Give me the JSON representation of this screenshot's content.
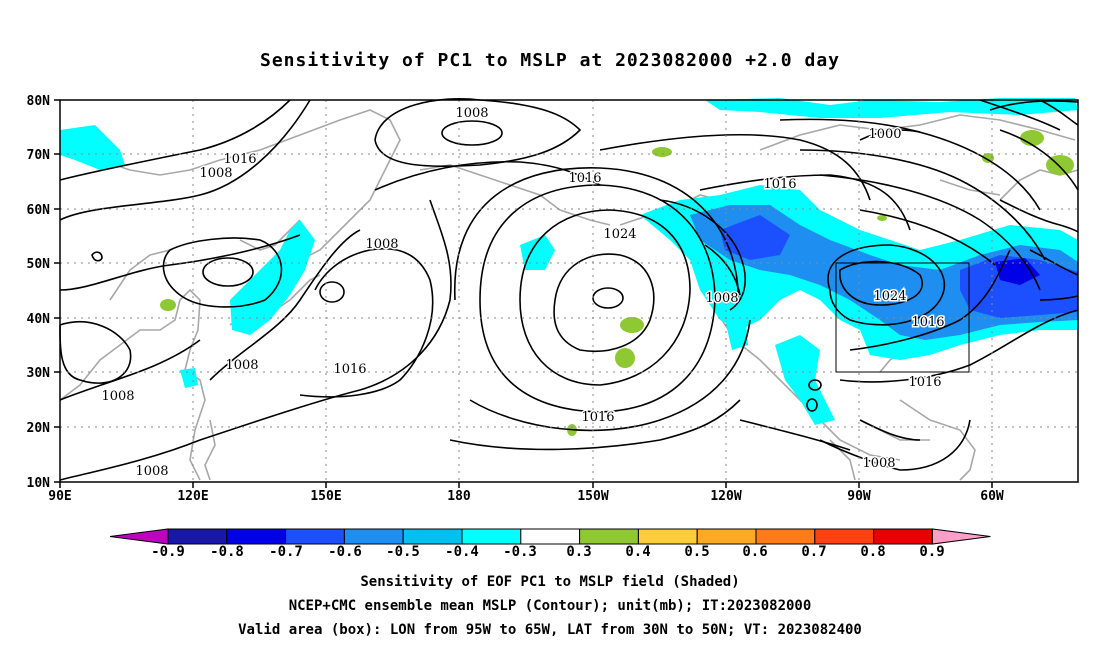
{
  "title": "Sensitivity of PC1 to MSLP at 2023082000 +2.0 day",
  "lat_labels": [
    "80N",
    "70N",
    "60N",
    "50N",
    "40N",
    "30N",
    "20N",
    "10N"
  ],
  "lon_labels": [
    "90E",
    "120E",
    "150E",
    "180",
    "150W",
    "120W",
    "90W",
    "60W"
  ],
  "contour_labels": [
    {
      "text": "1008"
    },
    {
      "text": "1016"
    },
    {
      "text": "1008"
    },
    {
      "text": "1008"
    },
    {
      "text": "1016"
    },
    {
      "text": "1024"
    },
    {
      "text": "1016"
    },
    {
      "text": "1000"
    },
    {
      "text": "1008"
    },
    {
      "text": "1024"
    },
    {
      "text": "1016"
    },
    {
      "text": "1016"
    },
    {
      "text": "1016"
    },
    {
      "text": "1008"
    },
    {
      "text": "1008"
    },
    {
      "text": "1016"
    },
    {
      "text": "1008"
    },
    {
      "text": "1008"
    }
  ],
  "colorbar": {
    "labels": [
      "-0.9",
      "-0.8",
      "-0.7",
      "-0.6",
      "-0.5",
      "-0.4",
      "-0.3",
      "0.3",
      "0.4",
      "0.5",
      "0.6",
      "0.7",
      "0.8",
      "0.9"
    ],
    "colors": [
      "#c000c0",
      "#1818a8",
      "#0000e6",
      "#1c50ff",
      "#1e8ef0",
      "#00c0f0",
      "#00ffff",
      "#ffffff",
      "#8ec832",
      "#ffcc3a",
      "#ffaa22",
      "#ff7c18",
      "#ff4010",
      "#e80000",
      "#ff9ec8"
    ]
  },
  "valid_box": {
    "lon_min": "95W",
    "lon_max": "65W",
    "lat_min": "30N",
    "lat_max": "50N"
  },
  "captions": [
    "Sensitivity of EOF PC1 to MSLP field (Shaded)",
    "NCEP+CMC ensemble mean MSLP (Contour); unit(mb); IT:2023082000",
    "Valid area (box): LON from 95W to 65W, LAT from 30N to 50N; VT: 2023082400"
  ]
}
